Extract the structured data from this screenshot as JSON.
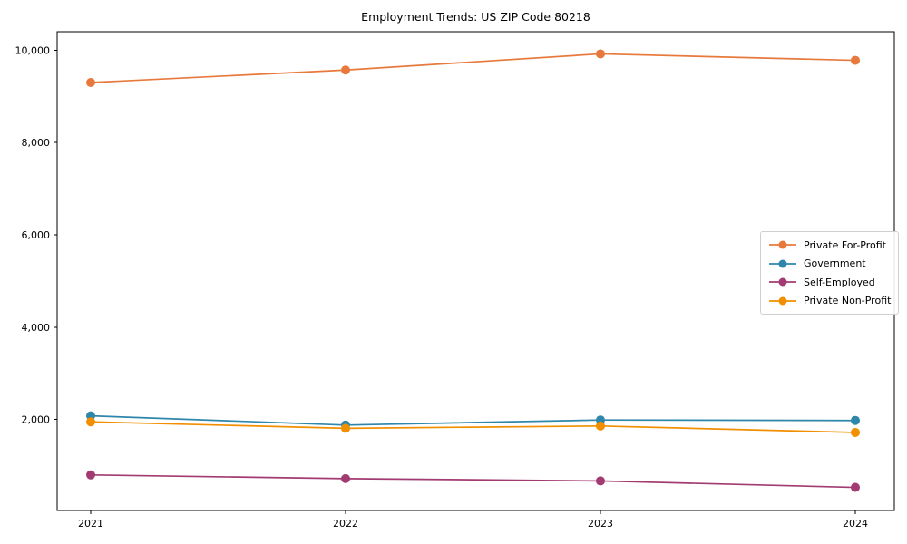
{
  "figure": {
    "background": "#ffffff"
  },
  "chart_data": {
    "type": "line",
    "title": "Employment Trends: US ZIP Code 80218",
    "xlabel": "",
    "ylabel": "",
    "categories": [
      "2021",
      "2022",
      "2023",
      "2024"
    ],
    "y_ticks": [
      2000,
      4000,
      6000,
      8000,
      10000
    ],
    "y_tick_labels": [
      "2,000",
      "4,000",
      "6,000",
      "8,000",
      "10,000"
    ],
    "ylim": [
      30,
      10400
    ],
    "grid": false,
    "marker": "circle",
    "legend_position": "center-right",
    "axis_color": "#000000",
    "series": [
      {
        "name": "Private For-Profit",
        "color": "#E8793D",
        "values": [
          9300,
          9570,
          9920,
          9780
        ]
      },
      {
        "name": "Government",
        "color": "#2E86AB",
        "values": [
          2080,
          1880,
          1990,
          1980
        ]
      },
      {
        "name": "Self-Employed",
        "color": "#A23B72",
        "values": [
          800,
          720,
          670,
          530
        ]
      },
      {
        "name": "Private Non-Profit",
        "color": "#F18F01",
        "values": [
          1950,
          1810,
          1860,
          1720
        ]
      }
    ]
  }
}
